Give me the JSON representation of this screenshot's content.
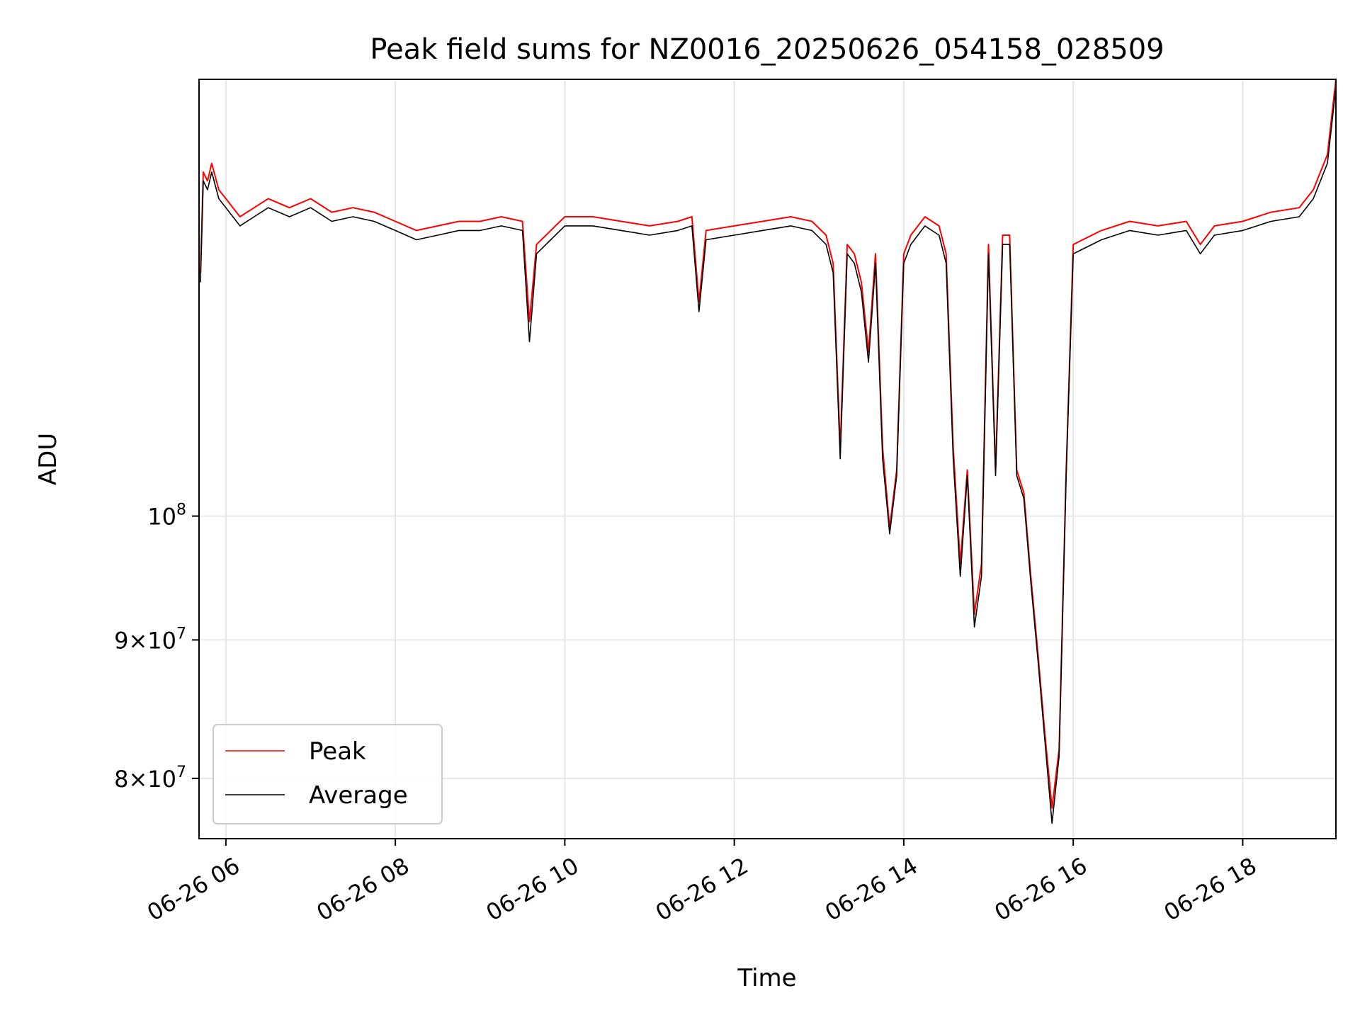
{
  "chart_data": {
    "type": "line",
    "title": "Peak field sums for NZ0016_20250626_054158_028509",
    "xlabel": "Time",
    "ylabel": "ADU",
    "y_scale": "log",
    "grid": true,
    "legend_position": "lower-left",
    "xlim": [
      "2025-06-26 05:41",
      "2025-06-26 19:06"
    ],
    "ylim": [
      76000000,
      145000000
    ],
    "x_ticks": [
      {
        "value": "2025-06-26 06:00",
        "label": "06-26 06"
      },
      {
        "value": "2025-06-26 08:00",
        "label": "06-26 08"
      },
      {
        "value": "2025-06-26 10:00",
        "label": "06-26 10"
      },
      {
        "value": "2025-06-26 12:00",
        "label": "06-26 12"
      },
      {
        "value": "2025-06-26 14:00",
        "label": "06-26 14"
      },
      {
        "value": "2025-06-26 16:00",
        "label": "06-26 16"
      },
      {
        "value": "2025-06-26 18:00",
        "label": "06-26 18"
      }
    ],
    "y_ticks": [
      {
        "value": 80000000,
        "base": "8",
        "exp": "7"
      },
      {
        "value": 90000000,
        "base": "9",
        "exp": "7"
      },
      {
        "value": 100000000,
        "base": "",
        "exp": "8"
      }
    ],
    "series": [
      {
        "name": "Peak",
        "color": "#ff0000",
        "x": [
          "2025-06-26 05:42",
          "2025-06-26 05:44",
          "2025-06-26 05:47",
          "2025-06-26 05:50",
          "2025-06-26 05:55",
          "2025-06-26 06:00",
          "2025-06-26 06:10",
          "2025-06-26 06:20",
          "2025-06-26 06:30",
          "2025-06-26 06:45",
          "2025-06-26 07:00",
          "2025-06-26 07:15",
          "2025-06-26 07:30",
          "2025-06-26 07:45",
          "2025-06-26 08:00",
          "2025-06-26 08:15",
          "2025-06-26 08:30",
          "2025-06-26 08:45",
          "2025-06-26 09:00",
          "2025-06-26 09:15",
          "2025-06-26 09:30",
          "2025-06-26 09:35",
          "2025-06-26 09:40",
          "2025-06-26 09:50",
          "2025-06-26 10:00",
          "2025-06-26 10:20",
          "2025-06-26 10:40",
          "2025-06-26 11:00",
          "2025-06-26 11:20",
          "2025-06-26 11:30",
          "2025-06-26 11:35",
          "2025-06-26 11:40",
          "2025-06-26 12:00",
          "2025-06-26 12:20",
          "2025-06-26 12:40",
          "2025-06-26 12:55",
          "2025-06-26 13:05",
          "2025-06-26 13:10",
          "2025-06-26 13:15",
          "2025-06-26 13:20",
          "2025-06-26 13:25",
          "2025-06-26 13:30",
          "2025-06-26 13:35",
          "2025-06-26 13:40",
          "2025-06-26 13:45",
          "2025-06-26 13:50",
          "2025-06-26 13:55",
          "2025-06-26 14:00",
          "2025-06-26 14:05",
          "2025-06-26 14:15",
          "2025-06-26 14:25",
          "2025-06-26 14:30",
          "2025-06-26 14:35",
          "2025-06-26 14:40",
          "2025-06-26 14:45",
          "2025-06-26 14:50",
          "2025-06-26 14:55",
          "2025-06-26 15:00",
          "2025-06-26 15:05",
          "2025-06-26 15:10",
          "2025-06-26 15:15",
          "2025-06-26 15:20",
          "2025-06-26 15:25",
          "2025-06-26 15:30",
          "2025-06-26 15:35",
          "2025-06-26 15:40",
          "2025-06-26 15:45",
          "2025-06-26 15:50",
          "2025-06-26 15:55",
          "2025-06-26 16:00",
          "2025-06-26 16:20",
          "2025-06-26 16:40",
          "2025-06-26 17:00",
          "2025-06-26 17:20",
          "2025-06-26 17:30",
          "2025-06-26 17:40",
          "2025-06-26 18:00",
          "2025-06-26 18:20",
          "2025-06-26 18:40",
          "2025-06-26 18:50",
          "2025-06-26 19:00",
          "2025-06-26 19:06"
        ],
        "values": [
          123000000,
          134000000,
          133000000,
          135000000,
          132000000,
          131000000,
          129000000,
          130000000,
          131000000,
          130000000,
          131000000,
          129500000,
          130000000,
          129500000,
          128500000,
          127500000,
          128000000,
          128500000,
          128500000,
          129000000,
          128500000,
          118000000,
          126000000,
          127500000,
          129000000,
          129000000,
          128500000,
          128000000,
          128500000,
          129000000,
          120000000,
          127500000,
          128000000,
          128500000,
          129000000,
          128500000,
          127000000,
          124000000,
          106000000,
          126000000,
          125000000,
          122000000,
          115000000,
          125000000,
          106000000,
          99000000,
          104000000,
          125000000,
          127000000,
          129000000,
          128000000,
          125000000,
          106000000,
          96000000,
          104000000,
          92000000,
          96000000,
          126000000,
          104000000,
          127000000,
          127000000,
          104000000,
          102000000,
          95000000,
          89000000,
          83000000,
          78000000,
          82000000,
          104000000,
          126000000,
          127500000,
          128500000,
          128000000,
          128500000,
          126000000,
          128000000,
          128500000,
          129500000,
          130000000,
          132000000,
          136000000,
          145000000
        ]
      },
      {
        "name": "Average",
        "color": "#000000",
        "x": [
          "2025-06-26 05:42",
          "2025-06-26 05:44",
          "2025-06-26 05:47",
          "2025-06-26 05:50",
          "2025-06-26 05:55",
          "2025-06-26 06:00",
          "2025-06-26 06:10",
          "2025-06-26 06:20",
          "2025-06-26 06:30",
          "2025-06-26 06:45",
          "2025-06-26 07:00",
          "2025-06-26 07:15",
          "2025-06-26 07:30",
          "2025-06-26 07:45",
          "2025-06-26 08:00",
          "2025-06-26 08:15",
          "2025-06-26 08:30",
          "2025-06-26 08:45",
          "2025-06-26 09:00",
          "2025-06-26 09:15",
          "2025-06-26 09:30",
          "2025-06-26 09:35",
          "2025-06-26 09:40",
          "2025-06-26 09:50",
          "2025-06-26 10:00",
          "2025-06-26 10:20",
          "2025-06-26 10:40",
          "2025-06-26 11:00",
          "2025-06-26 11:20",
          "2025-06-26 11:30",
          "2025-06-26 11:35",
          "2025-06-26 11:40",
          "2025-06-26 12:00",
          "2025-06-26 12:20",
          "2025-06-26 12:40",
          "2025-06-26 12:55",
          "2025-06-26 13:05",
          "2025-06-26 13:10",
          "2025-06-26 13:15",
          "2025-06-26 13:20",
          "2025-06-26 13:25",
          "2025-06-26 13:30",
          "2025-06-26 13:35",
          "2025-06-26 13:40",
          "2025-06-26 13:45",
          "2025-06-26 13:50",
          "2025-06-26 13:55",
          "2025-06-26 14:00",
          "2025-06-26 14:05",
          "2025-06-26 14:15",
          "2025-06-26 14:25",
          "2025-06-26 14:30",
          "2025-06-26 14:35",
          "2025-06-26 14:40",
          "2025-06-26 14:45",
          "2025-06-26 14:50",
          "2025-06-26 14:55",
          "2025-06-26 15:00",
          "2025-06-26 15:05",
          "2025-06-26 15:10",
          "2025-06-26 15:15",
          "2025-06-26 15:20",
          "2025-06-26 15:25",
          "2025-06-26 15:30",
          "2025-06-26 15:35",
          "2025-06-26 15:40",
          "2025-06-26 15:45",
          "2025-06-26 15:50",
          "2025-06-26 15:55",
          "2025-06-26 16:00",
          "2025-06-26 16:20",
          "2025-06-26 16:40",
          "2025-06-26 17:00",
          "2025-06-26 17:20",
          "2025-06-26 17:30",
          "2025-06-26 17:40",
          "2025-06-26 18:00",
          "2025-06-26 18:20",
          "2025-06-26 18:40",
          "2025-06-26 18:50",
          "2025-06-26 19:00",
          "2025-06-26 19:06"
        ],
        "values": [
          122000000,
          133000000,
          132000000,
          134000000,
          131000000,
          130000000,
          128000000,
          129000000,
          130000000,
          129000000,
          130000000,
          128500000,
          129000000,
          128500000,
          127500000,
          126500000,
          127000000,
          127500000,
          127500000,
          128000000,
          127500000,
          116000000,
          125000000,
          126500000,
          128000000,
          128000000,
          127500000,
          127000000,
          127500000,
          128000000,
          119000000,
          126500000,
          127000000,
          127500000,
          128000000,
          127500000,
          126000000,
          123000000,
          105000000,
          125000000,
          124000000,
          121000000,
          114000000,
          124000000,
          105000000,
          98500000,
          103500000,
          124000000,
          126000000,
          128000000,
          127000000,
          124000000,
          105000000,
          95000000,
          103500000,
          91000000,
          95000000,
          125000000,
          103500000,
          126000000,
          126000000,
          103500000,
          101500000,
          94500000,
          88500000,
          82500000,
          77000000,
          81500000,
          103500000,
          125000000,
          126500000,
          127500000,
          127000000,
          127500000,
          125000000,
          127000000,
          127500000,
          128500000,
          129000000,
          131000000,
          135000000,
          144000000
        ]
      }
    ]
  }
}
